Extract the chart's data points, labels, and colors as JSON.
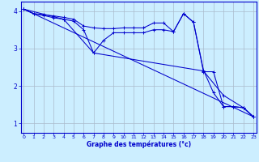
{
  "xlabel": "Graphe des températures (°c)",
  "background_color": "#cceeff",
  "grid_color": "#aabbcc",
  "line_color": "#0000cc",
  "x_ticks": [
    0,
    1,
    2,
    3,
    4,
    5,
    6,
    7,
    8,
    9,
    10,
    11,
    12,
    13,
    14,
    15,
    16,
    17,
    18,
    19,
    20,
    21,
    22,
    23
  ],
  "y_ticks": [
    1,
    2,
    3,
    4
  ],
  "xlim": [
    -0.3,
    23.3
  ],
  "ylim": [
    0.75,
    4.25
  ],
  "line1_x": [
    0,
    1,
    2,
    3,
    4,
    5,
    6,
    7,
    8,
    9,
    10,
    11,
    12,
    13,
    14,
    15,
    16,
    17,
    18,
    19,
    20,
    21,
    22,
    23
  ],
  "line1_y": [
    4.05,
    3.93,
    3.9,
    3.87,
    3.83,
    3.78,
    3.6,
    3.55,
    3.53,
    3.53,
    3.55,
    3.55,
    3.55,
    3.68,
    3.68,
    3.45,
    3.93,
    3.7,
    2.42,
    1.82,
    1.45,
    1.45,
    1.42,
    1.18
  ],
  "line2_x": [
    0,
    1,
    2,
    3,
    4,
    5,
    6,
    7,
    8,
    9,
    10,
    11,
    12,
    13,
    14,
    15,
    16,
    17,
    18,
    19,
    20,
    21,
    22,
    23
  ],
  "line2_y": [
    4.05,
    3.93,
    3.88,
    3.82,
    3.78,
    3.73,
    3.5,
    2.88,
    3.22,
    3.42,
    3.42,
    3.42,
    3.42,
    3.5,
    3.5,
    3.45,
    3.93,
    3.7,
    2.38,
    2.38,
    1.45,
    1.45,
    1.42,
    1.18
  ],
  "line3_x": [
    0,
    4,
    7,
    18,
    20,
    22,
    23
  ],
  "line3_y": [
    4.05,
    3.78,
    2.88,
    2.4,
    1.75,
    1.42,
    1.18
  ],
  "line4_x": [
    0,
    23
  ],
  "line4_y": [
    4.05,
    1.18
  ]
}
